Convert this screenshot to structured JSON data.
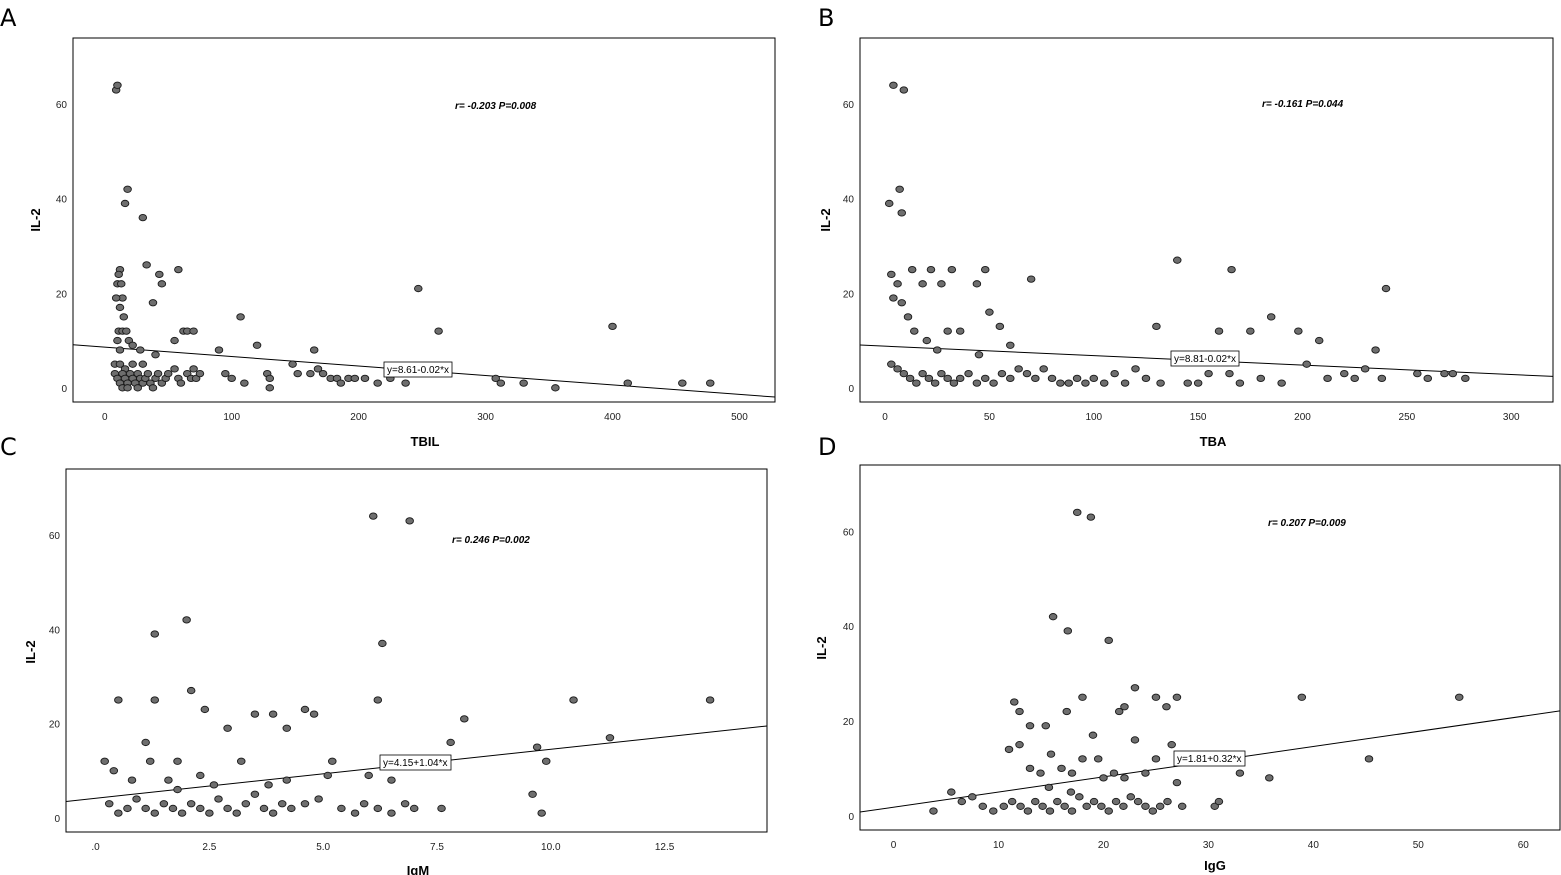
{
  "chart_data": [
    {
      "panel": "A",
      "type": "scatter",
      "xlabel": "TBIL",
      "ylabel": "IL-2",
      "annotation": "r= -0.203  P=0.008",
      "fit_label": "y=8.61-0.02*x",
      "fit": {
        "intercept": 8.61,
        "slope": -0.02
      },
      "xlim": [
        -25,
        528
      ],
      "ylim": [
        -3,
        74
      ],
      "xticks": [
        0,
        100,
        200,
        300,
        400,
        500
      ],
      "xtick_labels": [
        "0",
        "100",
        "200",
        "300",
        "400",
        "500"
      ],
      "yticks": [
        0,
        20,
        40,
        60
      ],
      "grid": false,
      "points": [
        [
          9,
          63
        ],
        [
          10,
          64
        ],
        [
          18,
          42
        ],
        [
          16,
          39
        ],
        [
          30,
          36
        ],
        [
          33,
          26
        ],
        [
          12,
          25
        ],
        [
          11,
          24
        ],
        [
          10,
          22
        ],
        [
          13,
          22
        ],
        [
          14,
          19
        ],
        [
          9,
          19
        ],
        [
          12,
          17
        ],
        [
          15,
          15
        ],
        [
          11,
          12
        ],
        [
          14,
          12
        ],
        [
          17,
          12
        ],
        [
          10,
          10
        ],
        [
          19,
          10
        ],
        [
          22,
          9
        ],
        [
          28,
          8
        ],
        [
          12,
          8
        ],
        [
          8,
          5
        ],
        [
          12,
          5
        ],
        [
          16,
          4
        ],
        [
          8,
          3
        ],
        [
          10,
          2
        ],
        [
          12,
          1
        ],
        [
          14,
          3
        ],
        [
          16,
          2
        ],
        [
          18,
          1
        ],
        [
          20,
          3
        ],
        [
          22,
          2
        ],
        [
          24,
          1
        ],
        [
          26,
          3
        ],
        [
          28,
          2
        ],
        [
          30,
          1
        ],
        [
          32,
          2
        ],
        [
          34,
          3
        ],
        [
          36,
          1
        ],
        [
          14,
          0
        ],
        [
          18,
          0
        ],
        [
          26,
          0
        ],
        [
          38,
          0
        ],
        [
          22,
          5
        ],
        [
          30,
          5
        ],
        [
          40,
          2
        ],
        [
          42,
          3
        ],
        [
          45,
          1
        ],
        [
          48,
          2
        ],
        [
          50,
          3
        ],
        [
          55,
          4
        ],
        [
          58,
          2
        ],
        [
          60,
          1
        ],
        [
          65,
          3
        ],
        [
          68,
          2
        ],
        [
          70,
          4
        ],
        [
          72,
          2
        ],
        [
          75,
          3
        ],
        [
          40,
          7
        ],
        [
          45,
          22
        ],
        [
          38,
          18
        ],
        [
          43,
          24
        ],
        [
          58,
          25
        ],
        [
          55,
          10
        ],
        [
          62,
          12
        ],
        [
          65,
          12
        ],
        [
          70,
          12
        ],
        [
          90,
          8
        ],
        [
          95,
          3
        ],
        [
          100,
          2
        ],
        [
          107,
          15
        ],
        [
          110,
          1
        ],
        [
          120,
          9
        ],
        [
          128,
          3
        ],
        [
          130,
          2
        ],
        [
          130,
          0
        ],
        [
          148,
          5
        ],
        [
          152,
          3
        ],
        [
          162,
          3
        ],
        [
          165,
          8
        ],
        [
          168,
          4
        ],
        [
          172,
          3
        ],
        [
          178,
          2
        ],
        [
          183,
          2
        ],
        [
          186,
          1
        ],
        [
          192,
          2
        ],
        [
          197,
          2
        ],
        [
          205,
          2
        ],
        [
          215,
          1
        ],
        [
          225,
          2
        ],
        [
          237,
          1
        ],
        [
          247,
          21
        ],
        [
          263,
          12
        ],
        [
          308,
          2
        ],
        [
          312,
          1
        ],
        [
          330,
          1
        ],
        [
          355,
          0
        ],
        [
          400,
          13
        ],
        [
          412,
          1
        ],
        [
          455,
          1
        ],
        [
          477,
          1
        ]
      ]
    },
    {
      "panel": "B",
      "type": "scatter",
      "xlabel": "TBA",
      "ylabel": "IL-2",
      "annotation": "r= -0.161  P=0.044",
      "fit_label": "y=8.81-0.02*x",
      "fit": {
        "intercept": 8.81,
        "slope": -0.02
      },
      "xlim": [
        -12,
        320
      ],
      "ylim": [
        -3,
        74
      ],
      "xticks": [
        0,
        50,
        100,
        150,
        200,
        250,
        300
      ],
      "xtick_labels": [
        "0",
        "50",
        "100",
        "150",
        "200",
        "250",
        "300"
      ],
      "yticks": [
        0,
        20,
        40,
        60
      ],
      "grid": false,
      "points": [
        [
          4,
          64
        ],
        [
          9,
          63
        ],
        [
          2,
          39
        ],
        [
          7,
          42
        ],
        [
          8,
          37
        ],
        [
          3,
          24
        ],
        [
          6,
          22
        ],
        [
          13,
          25
        ],
        [
          18,
          22
        ],
        [
          22,
          25
        ],
        [
          27,
          22
        ],
        [
          32,
          25
        ],
        [
          48,
          25
        ],
        [
          44,
          22
        ],
        [
          70,
          23
        ],
        [
          140,
          27
        ],
        [
          166,
          25
        ],
        [
          240,
          21
        ],
        [
          8,
          18
        ],
        [
          4,
          19
        ],
        [
          11,
          15
        ],
        [
          14,
          12
        ],
        [
          20,
          10
        ],
        [
          25,
          8
        ],
        [
          30,
          12
        ],
        [
          36,
          12
        ],
        [
          50,
          16
        ],
        [
          55,
          13
        ],
        [
          60,
          9
        ],
        [
          45,
          7
        ],
        [
          3,
          5
        ],
        [
          6,
          4
        ],
        [
          9,
          3
        ],
        [
          12,
          2
        ],
        [
          15,
          1
        ],
        [
          18,
          3
        ],
        [
          21,
          2
        ],
        [
          24,
          1
        ],
        [
          27,
          3
        ],
        [
          30,
          2
        ],
        [
          33,
          1
        ],
        [
          36,
          2
        ],
        [
          40,
          3
        ],
        [
          44,
          1
        ],
        [
          48,
          2
        ],
        [
          52,
          1
        ],
        [
          56,
          3
        ],
        [
          60,
          2
        ],
        [
          64,
          4
        ],
        [
          68,
          3
        ],
        [
          72,
          2
        ],
        [
          76,
          4
        ],
        [
          80,
          2
        ],
        [
          84,
          1
        ],
        [
          88,
          1
        ],
        [
          92,
          2
        ],
        [
          96,
          1
        ],
        [
          100,
          2
        ],
        [
          105,
          1
        ],
        [
          110,
          3
        ],
        [
          115,
          1
        ],
        [
          120,
          4
        ],
        [
          125,
          2
        ],
        [
          130,
          13
        ],
        [
          132,
          1
        ],
        [
          145,
          1
        ],
        [
          150,
          1
        ],
        [
          155,
          3
        ],
        [
          160,
          12
        ],
        [
          165,
          3
        ],
        [
          170,
          1
        ],
        [
          175,
          12
        ],
        [
          180,
          2
        ],
        [
          185,
          15
        ],
        [
          190,
          1
        ],
        [
          198,
          12
        ],
        [
          202,
          5
        ],
        [
          208,
          10
        ],
        [
          212,
          2
        ],
        [
          220,
          3
        ],
        [
          225,
          2
        ],
        [
          230,
          4
        ],
        [
          235,
          8
        ],
        [
          238,
          2
        ],
        [
          255,
          3
        ],
        [
          260,
          2
        ],
        [
          268,
          3
        ],
        [
          272,
          3
        ],
        [
          278,
          2
        ]
      ]
    },
    {
      "panel": "C",
      "type": "scatter",
      "xlabel": "IgM",
      "ylabel": "IL-2",
      "annotation": "r= 0.246  P=0.002",
      "fit_label": "y=4.15+1.04*x",
      "fit": {
        "intercept": 4.15,
        "slope": 1.04
      },
      "xlim": [
        -0.65,
        14.75
      ],
      "ylim": [
        -3,
        74
      ],
      "xticks": [
        0,
        2.5,
        5.0,
        7.5,
        10.0,
        12.5
      ],
      "xtick_labels": [
        ".0",
        "2.5",
        "5.0",
        "7.5",
        "10.0",
        "12.5"
      ],
      "yticks": [
        0,
        20,
        40,
        60
      ],
      "grid": false,
      "points": [
        [
          6.1,
          64
        ],
        [
          6.9,
          63
        ],
        [
          2.0,
          42
        ],
        [
          1.3,
          39
        ],
        [
          6.3,
          37
        ],
        [
          0.5,
          25
        ],
        [
          1.3,
          25
        ],
        [
          2.1,
          27
        ],
        [
          2.4,
          23
        ],
        [
          3.5,
          22
        ],
        [
          4.6,
          23
        ],
        [
          4.8,
          22
        ],
        [
          6.2,
          25
        ],
        [
          8.1,
          21
        ],
        [
          10.5,
          25
        ],
        [
          13.5,
          25
        ],
        [
          0.2,
          12
        ],
        [
          0.4,
          10
        ],
        [
          0.8,
          8
        ],
        [
          1.1,
          16
        ],
        [
          1.2,
          12
        ],
        [
          1.8,
          12
        ],
        [
          2.3,
          9
        ],
        [
          2.9,
          19
        ],
        [
          3.2,
          12
        ],
        [
          3.9,
          22
        ],
        [
          4.2,
          19
        ],
        [
          5.2,
          12
        ],
        [
          7.8,
          16
        ],
        [
          9.7,
          15
        ],
        [
          9.9,
          12
        ],
        [
          11.3,
          17
        ],
        [
          0.3,
          3
        ],
        [
          0.5,
          1
        ],
        [
          0.7,
          2
        ],
        [
          0.9,
          4
        ],
        [
          1.1,
          2
        ],
        [
          1.3,
          1
        ],
        [
          1.5,
          3
        ],
        [
          1.7,
          2
        ],
        [
          1.9,
          1
        ],
        [
          2.1,
          3
        ],
        [
          2.3,
          2
        ],
        [
          2.5,
          1
        ],
        [
          2.7,
          4
        ],
        [
          2.9,
          2
        ],
        [
          3.1,
          1
        ],
        [
          3.3,
          3
        ],
        [
          3.5,
          5
        ],
        [
          3.7,
          2
        ],
        [
          3.9,
          1
        ],
        [
          4.1,
          3
        ],
        [
          4.3,
          2
        ],
        [
          4.6,
          3
        ],
        [
          4.9,
          4
        ],
        [
          5.1,
          9
        ],
        [
          5.4,
          2
        ],
        [
          5.7,
          1
        ],
        [
          5.9,
          3
        ],
        [
          6.2,
          2
        ],
        [
          6.5,
          1
        ],
        [
          6.8,
          3
        ],
        [
          7.0,
          2
        ],
        [
          7.6,
          2
        ],
        [
          9.6,
          5
        ],
        [
          9.8,
          1
        ],
        [
          1.6,
          8
        ],
        [
          1.8,
          6
        ],
        [
          2.6,
          7
        ],
        [
          3.8,
          7
        ],
        [
          4.2,
          8
        ],
        [
          6.0,
          9
        ],
        [
          6.5,
          8
        ]
      ]
    },
    {
      "panel": "D",
      "type": "scatter",
      "xlabel": "IgG",
      "ylabel": "IL-2",
      "annotation": "r= 0.207  P=0.009",
      "fit_label": "y=1.81+0.32*x",
      "fit": {
        "intercept": 1.81,
        "slope": 0.32
      },
      "xlim": [
        -3.2,
        63.5
      ],
      "ylim": [
        -3,
        74
      ],
      "xticks": [
        0,
        10,
        20,
        30,
        40,
        50,
        60
      ],
      "xtick_labels": [
        "0",
        "10",
        "20",
        "30",
        "40",
        "50",
        "60"
      ],
      "yticks": [
        0,
        20,
        40,
        60
      ],
      "grid": false,
      "points": [
        [
          17.5,
          64
        ],
        [
          18.8,
          63
        ],
        [
          15.2,
          42
        ],
        [
          16.6,
          39
        ],
        [
          20.5,
          37
        ],
        [
          23,
          27
        ],
        [
          25,
          25
        ],
        [
          27,
          25
        ],
        [
          26,
          23
        ],
        [
          18,
          25
        ],
        [
          21.5,
          22
        ],
        [
          22,
          23
        ],
        [
          12,
          22
        ],
        [
          16.5,
          22
        ],
        [
          11.5,
          24
        ],
        [
          38.9,
          25
        ],
        [
          53.9,
          25
        ],
        [
          13,
          19
        ],
        [
          14.5,
          19
        ],
        [
          19,
          17
        ],
        [
          23,
          16
        ],
        [
          12,
          15
        ],
        [
          11,
          14
        ],
        [
          15,
          13
        ],
        [
          18,
          12
        ],
        [
          19.5,
          12
        ],
        [
          25,
          12
        ],
        [
          26.5,
          15
        ],
        [
          13,
          10
        ],
        [
          14,
          9
        ],
        [
          16,
          10
        ],
        [
          17,
          9
        ],
        [
          20,
          8
        ],
        [
          21,
          9
        ],
        [
          22,
          8
        ],
        [
          24,
          9
        ],
        [
          27,
          7
        ],
        [
          33,
          9
        ],
        [
          35.8,
          8
        ],
        [
          45.3,
          12
        ],
        [
          3.8,
          1
        ],
        [
          5.5,
          5
        ],
        [
          6.5,
          3
        ],
        [
          7.5,
          4
        ],
        [
          8.5,
          2
        ],
        [
          9.5,
          1
        ],
        [
          10.5,
          2
        ],
        [
          11.3,
          3
        ],
        [
          12.1,
          2
        ],
        [
          12.8,
          1
        ],
        [
          13.5,
          3
        ],
        [
          14.2,
          2
        ],
        [
          14.9,
          1
        ],
        [
          15.6,
          3
        ],
        [
          16.3,
          2
        ],
        [
          17,
          1
        ],
        [
          17.7,
          4
        ],
        [
          18.4,
          2
        ],
        [
          19.1,
          3
        ],
        [
          19.8,
          2
        ],
        [
          20.5,
          1
        ],
        [
          21.2,
          3
        ],
        [
          21.9,
          2
        ],
        [
          22.6,
          4
        ],
        [
          23.3,
          3
        ],
        [
          24,
          2
        ],
        [
          24.7,
          1
        ],
        [
          25.4,
          2
        ],
        [
          26.1,
          3
        ],
        [
          27.5,
          2
        ],
        [
          30.6,
          2
        ],
        [
          31,
          3
        ],
        [
          14.8,
          6
        ],
        [
          16.9,
          5
        ]
      ]
    }
  ]
}
